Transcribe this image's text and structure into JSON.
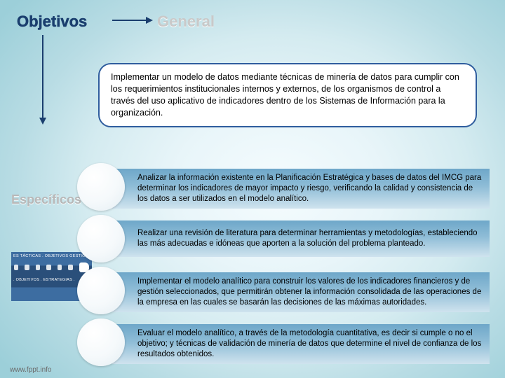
{
  "titles": {
    "objetivos": "Objetivos",
    "general": "General",
    "especificos": "Específicos"
  },
  "general_text": "Implementar un modelo de datos mediante técnicas de minería de datos para cumplir con los requerimientos institucionales internos y externos, de los organismos de control a través del uso aplicativo de indicadores dentro de los Sistemas de Información para la organización.",
  "specific_items": [
    "Analizar la información existente en la Planificación Estratégica y bases de datos del IMCG para determinar los indicadores de mayor impacto y riesgo, verificando la calidad y consistencia de los datos a ser utilizados en el modelo analítico.",
    "Realizar una revisión de literatura para determinar herramientas y metodologías, estableciendo las más adecuadas e idóneas que aporten a la solución del problema planteado.",
    "Implementar el modelo analítico para construir los valores de los indicadores financieros y de gestión seleccionados, que permitirán obtener la información consolidada de las operaciones de la empresa en las cuales se basarán las decisiones de las máximas autoridades.",
    "Evaluar el modelo analítico, a través de la metodología cuantitativa, es decir si cumple o no el objetivo; y técnicas de validación de minería de datos que determine el nivel de confianza de los resultados obtenidos."
  ],
  "thumb": {
    "top": "ES TÁCTICAS . OBJETIVOS GESTIÓ",
    "bottom": ". OBJETIVOS . ESTRATEGIAS ."
  },
  "footer": "www.fppt.info",
  "styling": {
    "bg_gradient_colors": [
      "#f5fcfe",
      "#e8f5f9",
      "#d4ebf0",
      "#b8dce4",
      "#9ccfd9"
    ],
    "title_color": "#1a3e6e",
    "outline_title_color": "#c9c9c9",
    "general_border": "#2f5d9e",
    "general_bg": "#ffffff",
    "bar_gradient": [
      "#6ea7c9",
      "#8fbdd7",
      "#cfe3ee"
    ],
    "circle_gradient": [
      "#ffffff",
      "#f5f9fb",
      "#e4eef3"
    ],
    "body_font_size_pt": 9,
    "title_font_size_pt": 17
  }
}
